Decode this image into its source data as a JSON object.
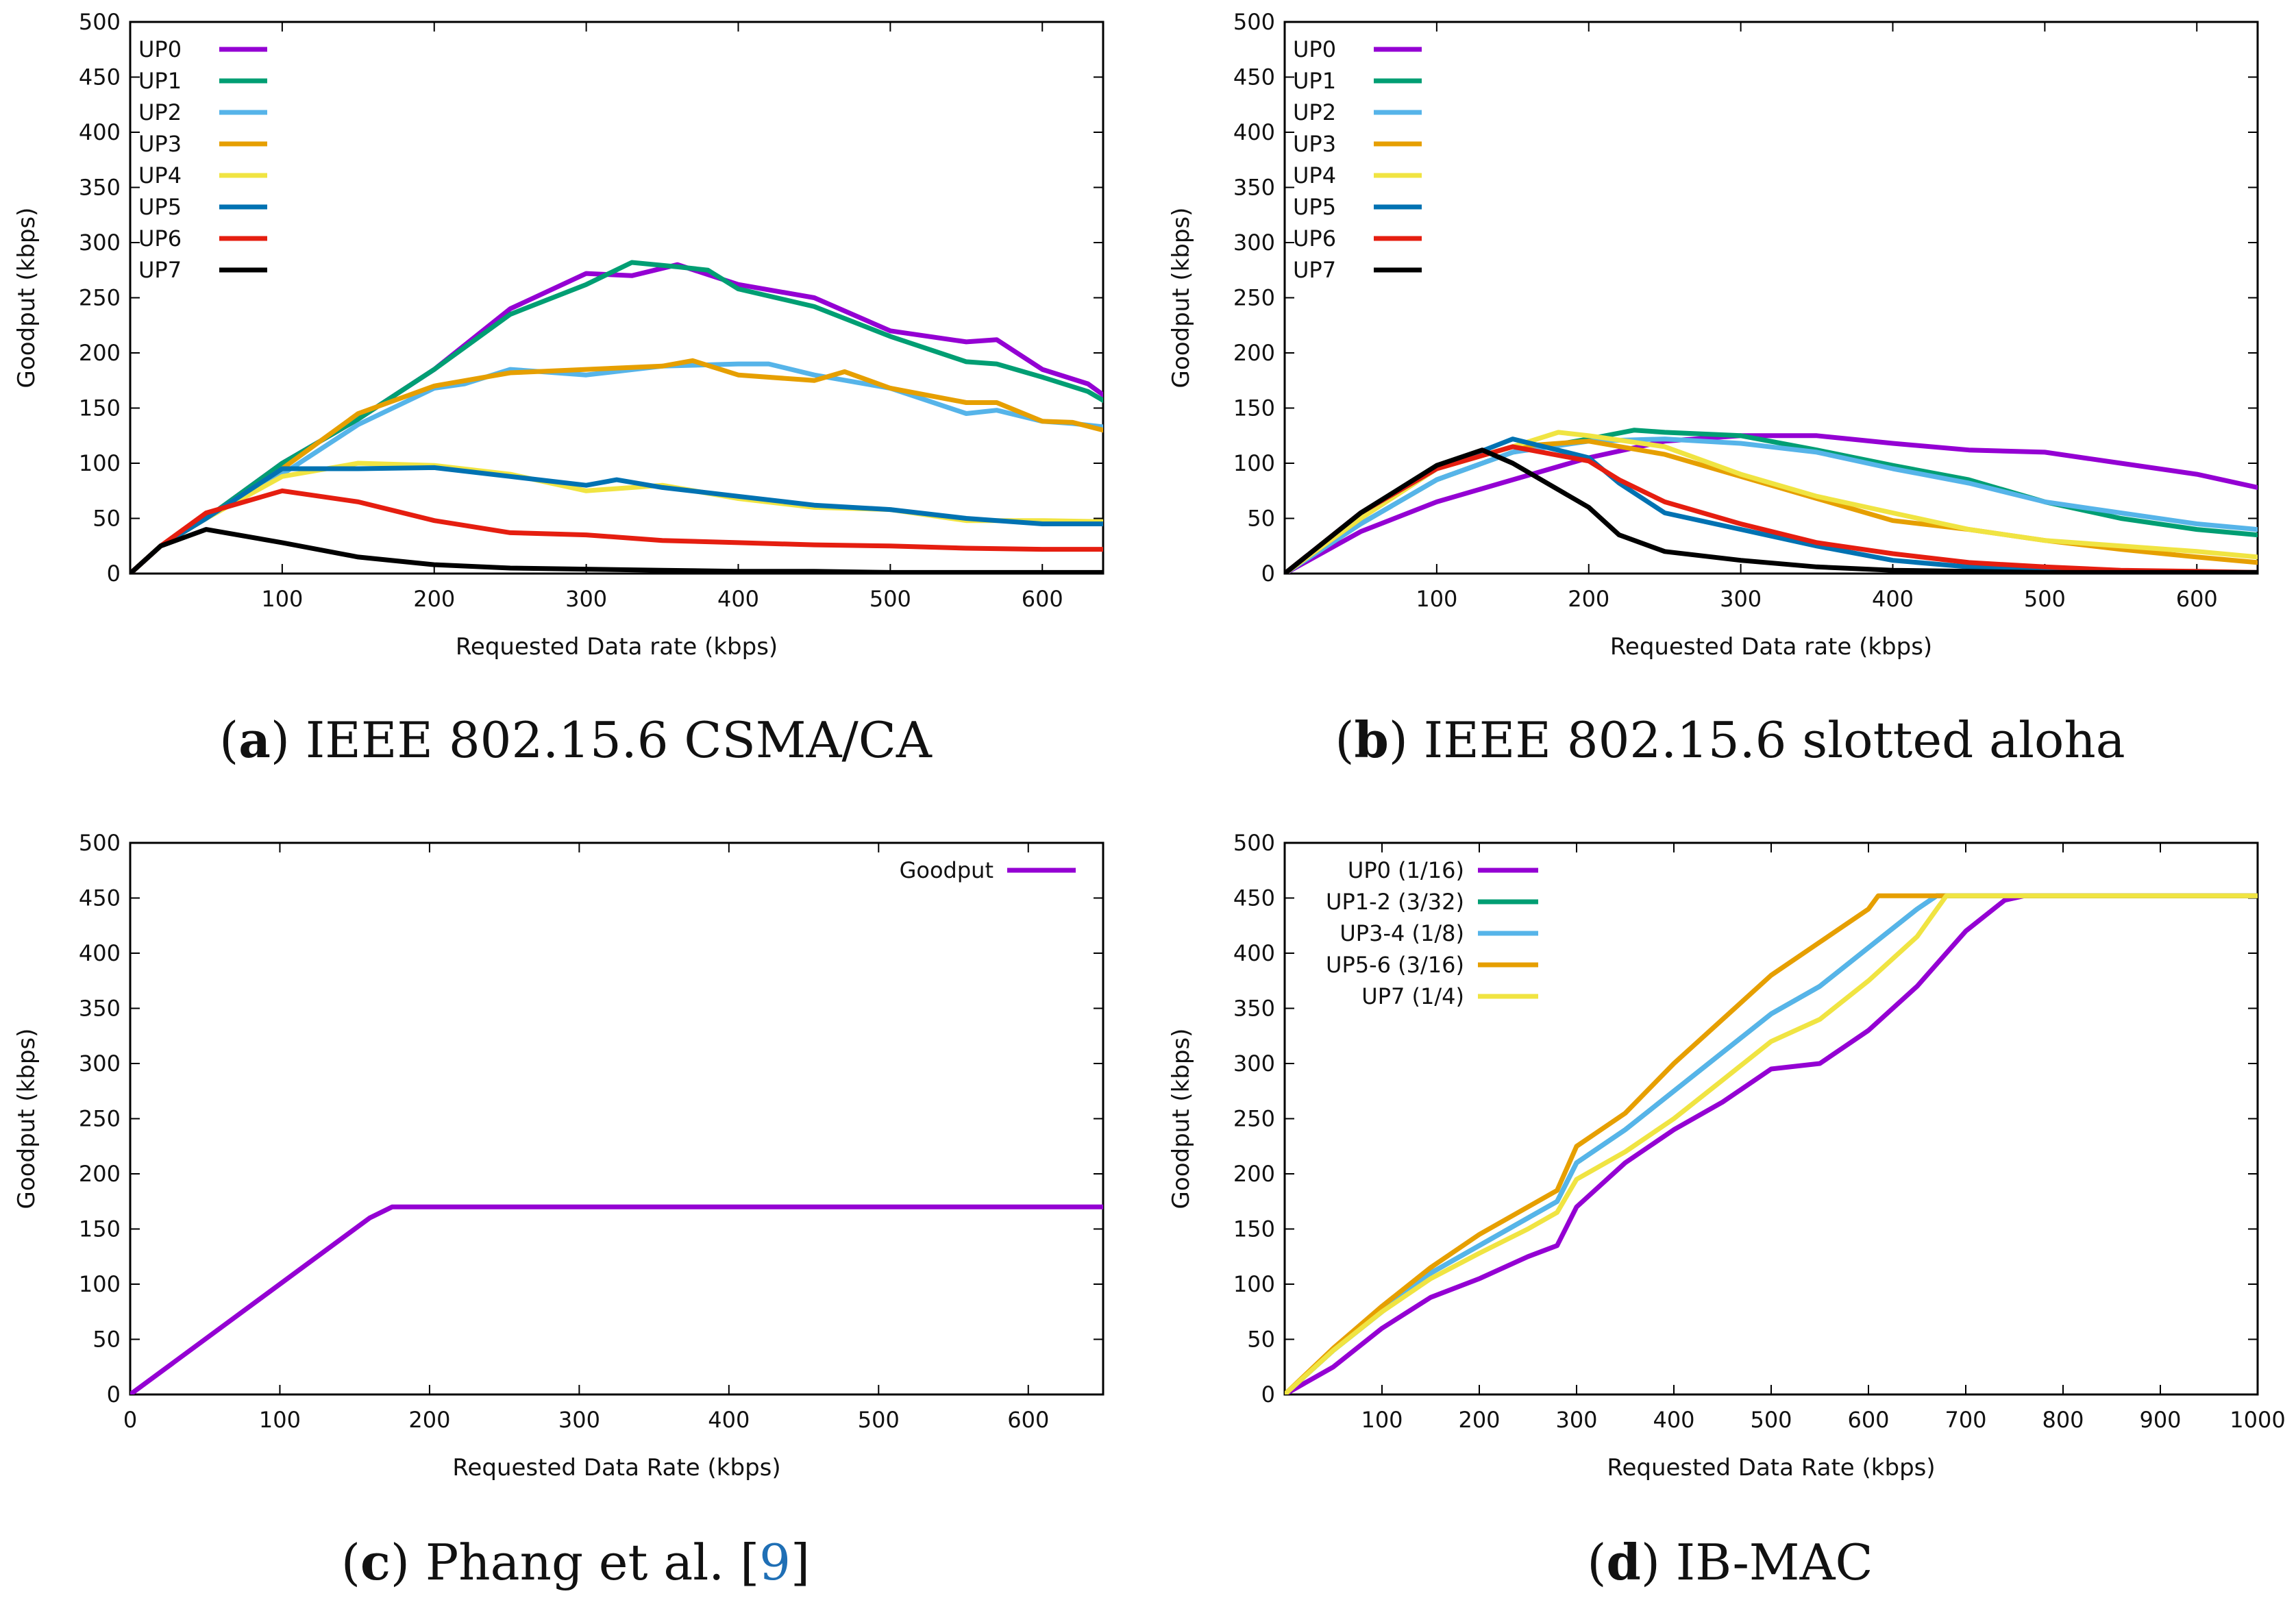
{
  "chart_data": [
    {
      "type": "line",
      "panel": "a",
      "caption": {
        "letter": "a",
        "title": "IEEE 802.15.6 CSMA/CA"
      },
      "xlabel": "Requested Data rate (kbps)",
      "ylabel": "Goodput (kbps)",
      "xlim": [
        0,
        640
      ],
      "ylim": [
        0,
        500
      ],
      "xticks": [
        100,
        200,
        300,
        400,
        500,
        600
      ],
      "yticks": [
        0,
        50,
        100,
        150,
        200,
        250,
        300,
        350,
        400,
        450,
        500
      ],
      "legend_position": "top-left",
      "series": [
        {
          "name": "UP0",
          "color": "#9400d3",
          "x": [
            0,
            20,
            50,
            100,
            150,
            200,
            250,
            300,
            330,
            360,
            400,
            450,
            500,
            550,
            570,
            600,
            630,
            640
          ],
          "y": [
            0,
            25,
            50,
            100,
            140,
            185,
            240,
            272,
            270,
            280,
            262,
            250,
            220,
            210,
            212,
            185,
            172,
            162
          ]
        },
        {
          "name": "UP1",
          "color": "#009e73",
          "x": [
            0,
            20,
            50,
            100,
            150,
            200,
            250,
            300,
            330,
            360,
            380,
            400,
            450,
            500,
            550,
            570,
            600,
            630,
            640
          ],
          "y": [
            0,
            25,
            50,
            100,
            140,
            185,
            235,
            262,
            282,
            278,
            275,
            258,
            242,
            215,
            192,
            190,
            178,
            165,
            157
          ]
        },
        {
          "name": "UP2",
          "color": "#56b4e9",
          "x": [
            0,
            20,
            50,
            100,
            150,
            200,
            220,
            250,
            300,
            350,
            400,
            420,
            450,
            500,
            550,
            570,
            600,
            620,
            640
          ],
          "y": [
            0,
            25,
            50,
            90,
            135,
            168,
            172,
            185,
            180,
            188,
            190,
            190,
            180,
            168,
            145,
            148,
            138,
            136,
            133
          ]
        },
        {
          "name": "UP3",
          "color": "#e69f00",
          "x": [
            0,
            20,
            50,
            100,
            150,
            200,
            250,
            300,
            350,
            370,
            400,
            450,
            470,
            500,
            550,
            570,
            600,
            620,
            640
          ],
          "y": [
            0,
            25,
            50,
            95,
            145,
            170,
            182,
            185,
            188,
            193,
            180,
            175,
            183,
            168,
            155,
            155,
            138,
            137,
            130
          ]
        },
        {
          "name": "UP4",
          "color": "#f0e442",
          "x": [
            0,
            20,
            50,
            100,
            150,
            200,
            250,
            300,
            350,
            400,
            450,
            500,
            550,
            600,
            640
          ],
          "y": [
            0,
            25,
            50,
            88,
            100,
            98,
            90,
            75,
            80,
            68,
            60,
            58,
            48,
            48,
            47
          ]
        },
        {
          "name": "UP5",
          "color": "#0072b2",
          "x": [
            0,
            20,
            50,
            100,
            150,
            200,
            250,
            300,
            320,
            350,
            400,
            450,
            500,
            550,
            600,
            640
          ],
          "y": [
            0,
            25,
            50,
            95,
            95,
            96,
            88,
            80,
            85,
            78,
            70,
            62,
            58,
            50,
            45,
            45
          ]
        },
        {
          "name": "UP6",
          "color": "#e51e10",
          "x": [
            0,
            20,
            50,
            100,
            150,
            200,
            250,
            300,
            350,
            400,
            450,
            500,
            550,
            600,
            640
          ],
          "y": [
            0,
            25,
            55,
            75,
            65,
            48,
            37,
            35,
            30,
            28,
            26,
            25,
            23,
            22,
            22
          ]
        },
        {
          "name": "UP7",
          "color": "#000000",
          "x": [
            0,
            20,
            50,
            100,
            150,
            200,
            250,
            300,
            350,
            400,
            450,
            500,
            550,
            600,
            640
          ],
          "y": [
            0,
            25,
            40,
            28,
            15,
            8,
            5,
            4,
            3,
            2,
            2,
            1,
            1,
            1,
            1
          ]
        }
      ]
    },
    {
      "type": "line",
      "panel": "b",
      "caption": {
        "letter": "b",
        "title": "IEEE 802.15.6 slotted aloha"
      },
      "xlabel": "Requested Data rate (kbps)",
      "ylabel": "Goodput (kbps)",
      "xlim": [
        0,
        640
      ],
      "ylim": [
        0,
        500
      ],
      "xticks": [
        100,
        200,
        300,
        400,
        500,
        600
      ],
      "yticks": [
        0,
        50,
        100,
        150,
        200,
        250,
        300,
        350,
        400,
        450,
        500
      ],
      "legend_position": "top-left",
      "series": [
        {
          "name": "UP0",
          "color": "#9400d3",
          "x": [
            0,
            50,
            100,
            150,
            200,
            250,
            300,
            350,
            400,
            450,
            500,
            550,
            600,
            640
          ],
          "y": [
            0,
            38,
            65,
            85,
            105,
            120,
            125,
            125,
            118,
            112,
            110,
            100,
            90,
            78
          ]
        },
        {
          "name": "UP1",
          "color": "#009e73",
          "x": [
            0,
            50,
            100,
            150,
            200,
            230,
            250,
            300,
            350,
            400,
            450,
            500,
            550,
            600,
            640
          ],
          "y": [
            0,
            45,
            85,
            110,
            122,
            130,
            128,
            125,
            112,
            98,
            85,
            65,
            50,
            40,
            35
          ]
        },
        {
          "name": "UP2",
          "color": "#56b4e9",
          "x": [
            0,
            50,
            100,
            150,
            200,
            250,
            300,
            350,
            400,
            450,
            500,
            550,
            600,
            640
          ],
          "y": [
            0,
            45,
            85,
            110,
            120,
            122,
            118,
            110,
            95,
            82,
            65,
            55,
            45,
            40
          ]
        },
        {
          "name": "UP3",
          "color": "#e69f00",
          "x": [
            0,
            50,
            100,
            150,
            200,
            250,
            300,
            350,
            400,
            450,
            500,
            550,
            600,
            640
          ],
          "y": [
            0,
            50,
            95,
            115,
            120,
            108,
            88,
            68,
            48,
            40,
            30,
            22,
            15,
            10
          ]
        },
        {
          "name": "UP4",
          "color": "#f0e442",
          "x": [
            0,
            50,
            100,
            150,
            180,
            200,
            250,
            300,
            350,
            400,
            450,
            500,
            550,
            600,
            640
          ],
          "y": [
            0,
            50,
            95,
            115,
            128,
            125,
            115,
            90,
            70,
            55,
            40,
            30,
            25,
            20,
            15
          ]
        },
        {
          "name": "UP5",
          "color": "#0072b2",
          "x": [
            0,
            50,
            100,
            150,
            200,
            220,
            250,
            300,
            350,
            400,
            450,
            500,
            550,
            600,
            640
          ],
          "y": [
            0,
            55,
            95,
            122,
            105,
            82,
            55,
            40,
            25,
            12,
            6,
            3,
            2,
            1,
            1
          ]
        },
        {
          "name": "UP6",
          "color": "#e51e10",
          "x": [
            0,
            50,
            100,
            150,
            200,
            220,
            250,
            300,
            350,
            400,
            450,
            500,
            550,
            600,
            640
          ],
          "y": [
            0,
            55,
            95,
            115,
            102,
            85,
            65,
            45,
            28,
            18,
            10,
            6,
            3,
            2,
            1
          ]
        },
        {
          "name": "UP7",
          "color": "#000000",
          "x": [
            0,
            50,
            100,
            130,
            150,
            200,
            220,
            250,
            300,
            350,
            400,
            450,
            500,
            550,
            600,
            640
          ],
          "y": [
            0,
            55,
            98,
            112,
            100,
            60,
            35,
            20,
            12,
            6,
            3,
            2,
            1,
            1,
            1,
            1
          ]
        }
      ]
    },
    {
      "type": "line",
      "panel": "c",
      "caption": {
        "letter": "c",
        "title": "Phang et al. [",
        "cite": "9",
        "close": "]"
      },
      "xlabel": "Requested Data Rate (kbps)",
      "ylabel": "Goodput (kbps)",
      "xlim": [
        0,
        650
      ],
      "ylim": [
        0,
        500
      ],
      "xticks": [
        0,
        100,
        200,
        300,
        400,
        500,
        600
      ],
      "yticks": [
        0,
        50,
        100,
        150,
        200,
        250,
        300,
        350,
        400,
        450,
        500
      ],
      "legend_position": "top-right",
      "series": [
        {
          "name": "Goodput",
          "color": "#9400d3",
          "x": [
            0,
            160,
            175,
            650
          ],
          "y": [
            0,
            160,
            170,
            170
          ]
        }
      ]
    },
    {
      "type": "line",
      "panel": "d",
      "caption": {
        "letter": "d",
        "title": "IB-MAC"
      },
      "xlabel": "Requested Data Rate (kbps)",
      "ylabel": "Goodput (kbps)",
      "xlim": [
        0,
        1000
      ],
      "ylim": [
        0,
        500
      ],
      "xticks": [
        100,
        200,
        300,
        400,
        500,
        600,
        700,
        800,
        900,
        1000
      ],
      "yticks": [
        0,
        50,
        100,
        150,
        200,
        250,
        300,
        350,
        400,
        450,
        500
      ],
      "legend_position": "top-left",
      "series": [
        {
          "name": "UP0 (1/16)",
          "color": "#9400d3",
          "x": [
            0,
            50,
            100,
            150,
            200,
            250,
            280,
            300,
            350,
            400,
            450,
            500,
            550,
            600,
            650,
            700,
            740,
            760,
            1000
          ],
          "y": [
            0,
            25,
            60,
            88,
            105,
            125,
            135,
            170,
            210,
            240,
            265,
            295,
            300,
            330,
            370,
            420,
            448,
            452,
            452
          ]
        },
        {
          "name": "UP1-2 (3/32)",
          "color": "#009e73",
          "x": [
            0,
            50,
            100,
            150,
            200,
            250,
            280,
            300,
            350,
            400,
            450,
            500,
            550,
            600,
            650,
            670,
            1000
          ],
          "y": [
            0,
            40,
            75,
            110,
            135,
            160,
            175,
            210,
            240,
            275,
            310,
            345,
            370,
            405,
            440,
            452,
            452
          ]
        },
        {
          "name": "UP3-4 (1/8)",
          "color": "#56b4e9",
          "x": [
            0,
            50,
            100,
            150,
            200,
            250,
            280,
            300,
            350,
            400,
            450,
            500,
            550,
            600,
            650,
            670,
            1000
          ],
          "y": [
            0,
            40,
            75,
            110,
            135,
            160,
            175,
            210,
            240,
            275,
            310,
            345,
            370,
            405,
            440,
            452,
            452
          ]
        },
        {
          "name": "UP5-6 (3/16)",
          "color": "#e69f00",
          "x": [
            0,
            50,
            100,
            150,
            200,
            250,
            280,
            300,
            350,
            400,
            450,
            500,
            550,
            600,
            610,
            1000
          ],
          "y": [
            0,
            42,
            80,
            115,
            145,
            170,
            185,
            225,
            255,
            300,
            340,
            380,
            410,
            440,
            452,
            452
          ]
        },
        {
          "name": "UP7 (1/4)",
          "color": "#f0e442",
          "x": [
            0,
            50,
            100,
            150,
            200,
            250,
            280,
            300,
            350,
            400,
            450,
            500,
            550,
            600,
            650,
            680,
            1000
          ],
          "y": [
            0,
            40,
            75,
            105,
            128,
            150,
            165,
            195,
            220,
            250,
            285,
            320,
            340,
            375,
            415,
            452,
            452
          ]
        }
      ]
    }
  ]
}
